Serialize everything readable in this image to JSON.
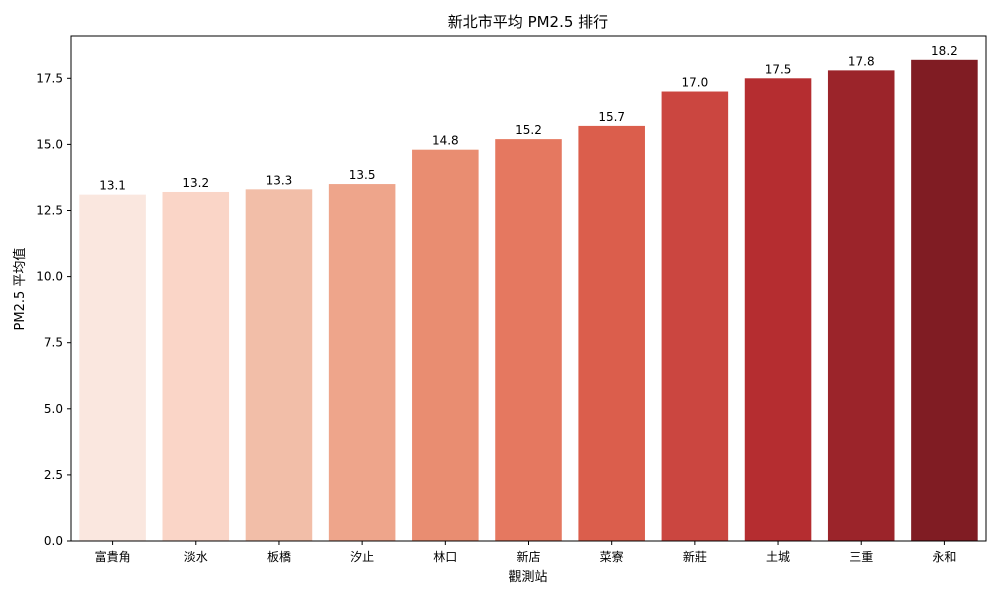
{
  "chart_data": {
    "type": "bar",
    "title": "新北市平均 PM2.5 排行",
    "xlabel": "觀測站",
    "ylabel": "PM2.5 平均值",
    "categories": [
      "富貴角",
      "淡水",
      "板橋",
      "汐止",
      "林口",
      "新店",
      "菜寮",
      "新莊",
      "土城",
      "三重",
      "永和"
    ],
    "values": [
      13.1,
      13.2,
      13.3,
      13.5,
      14.8,
      15.2,
      15.7,
      17.0,
      17.5,
      17.8,
      18.2
    ],
    "data_labels": [
      "13.1",
      "13.2",
      "13.3",
      "13.5",
      "14.8",
      "15.2",
      "15.7",
      "17.0",
      "17.5",
      "17.8",
      "18.2"
    ],
    "colors": [
      "#fae7df",
      "#fad5c7",
      "#f2bea8",
      "#eea58b",
      "#e98d71",
      "#e57860",
      "#db5e4c",
      "#cb4640",
      "#b52d30",
      "#9b242a",
      "#801c23"
    ],
    "ylim": [
      0,
      19.1
    ],
    "yticks": [
      "0.0",
      "2.5",
      "5.0",
      "7.5",
      "10.0",
      "12.5",
      "15.0",
      "17.5"
    ],
    "grid": false,
    "legend": "none"
  }
}
